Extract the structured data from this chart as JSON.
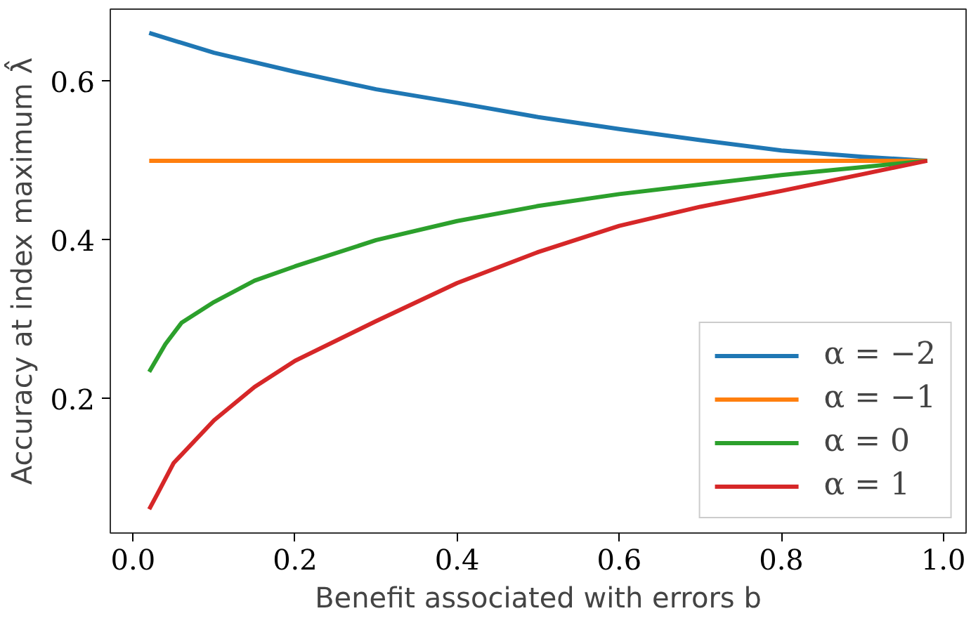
{
  "chart_data": {
    "type": "line",
    "xlabel": "Benefit associated with errors b",
    "ylabel": "Accuracy at index maximum λ̂",
    "xlim": [
      -0.028,
      1.028
    ],
    "ylim": [
      0.031,
      0.691
    ],
    "xticks": [
      {
        "value": 0,
        "label": "0.0"
      },
      0.2,
      0.4,
      0.6,
      0.8,
      {
        "value": 1,
        "label": "1.0"
      }
    ],
    "yticks": [
      0.2,
      0.4,
      0.6
    ],
    "grid": false,
    "legend": "bottom right",
    "line_style": "solid",
    "marker": "none",
    "series": [
      {
        "name": "α = −2",
        "color": "#1f77b4",
        "x": [
          0.02,
          0.1,
          0.2,
          0.3,
          0.4,
          0.5,
          0.6,
          0.7,
          0.8,
          0.9,
          0.98
        ],
        "values": [
          0.661,
          0.636,
          0.612,
          0.59,
          0.573,
          0.555,
          0.54,
          0.526,
          0.513,
          0.505,
          0.5
        ]
      },
      {
        "name": "α = −1",
        "color": "#ff7f0e",
        "x": [
          0.02,
          0.98
        ],
        "values": [
          0.5,
          0.5
        ]
      },
      {
        "name": "α = 0",
        "color": "#2ca02c",
        "x": [
          0.02,
          0.04,
          0.06,
          0.1,
          0.15,
          0.2,
          0.3,
          0.4,
          0.5,
          0.6,
          0.7,
          0.8,
          0.9,
          0.98
        ],
        "values": [
          0.234,
          0.269,
          0.296,
          0.322,
          0.349,
          0.367,
          0.4,
          0.424,
          0.443,
          0.458,
          0.47,
          0.482,
          0.492,
          0.5
        ]
      },
      {
        "name": "α = 1",
        "color": "#d62728",
        "x": [
          0.02,
          0.03,
          0.05,
          0.1,
          0.15,
          0.2,
          0.3,
          0.4,
          0.5,
          0.6,
          0.7,
          0.8,
          0.9,
          0.98
        ],
        "values": [
          0.061,
          0.08,
          0.119,
          0.173,
          0.215,
          0.248,
          0.298,
          0.346,
          0.385,
          0.418,
          0.442,
          0.462,
          0.483,
          0.5
        ]
      }
    ]
  }
}
